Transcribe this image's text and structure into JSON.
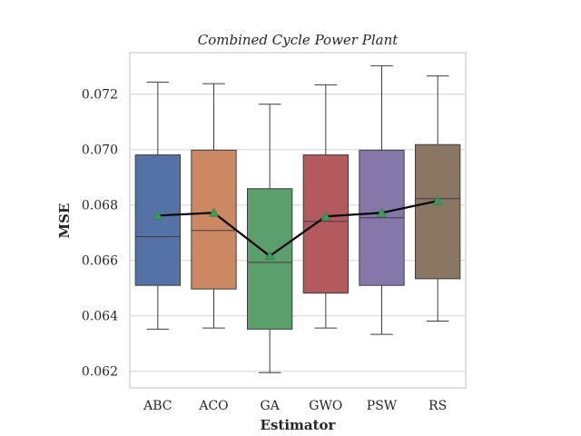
{
  "chart_data": {
    "type": "box",
    "title": "Combined Cycle Power Plant",
    "xlabel": "Estimator",
    "ylabel": "MSE",
    "ylim": [
      0.0614,
      0.0735
    ],
    "yticks": [
      0.062,
      0.064,
      0.066,
      0.068,
      0.07,
      0.072
    ],
    "ytick_labels": [
      "0.062",
      "0.064",
      "0.066",
      "0.068",
      "0.070",
      "0.072"
    ],
    "grid": "horizontal",
    "categories": [
      "ABC",
      "ACO",
      "GA",
      "GWO",
      "PSW",
      "RS"
    ],
    "colors": [
      "#5572a6",
      "#cc8863",
      "#5b9f6c",
      "#b45a5f",
      "#8677ab",
      "#8b7663"
    ],
    "boxes": [
      {
        "category": "ABC",
        "whisker_low": 0.06352,
        "q1": 0.0651,
        "median": 0.06686,
        "q3": 0.06981,
        "whisker_high": 0.07244
      },
      {
        "category": "ACO",
        "whisker_low": 0.06356,
        "q1": 0.06497,
        "median": 0.06708,
        "q3": 0.06998,
        "whisker_high": 0.07238
      },
      {
        "category": "GA",
        "whisker_low": 0.06195,
        "q1": 0.06352,
        "median": 0.06593,
        "q3": 0.06859,
        "whisker_high": 0.07164
      },
      {
        "category": "GWO",
        "whisker_low": 0.06356,
        "q1": 0.06482,
        "median": 0.06741,
        "q3": 0.06981,
        "whisker_high": 0.07234
      },
      {
        "category": "PSW",
        "whisker_low": 0.06333,
        "q1": 0.0651,
        "median": 0.06754,
        "q3": 0.06998,
        "whisker_high": 0.07303
      },
      {
        "category": "RS",
        "whisker_low": 0.06381,
        "q1": 0.06534,
        "median": 0.06823,
        "q3": 0.07018,
        "whisker_high": 0.07266
      }
    ],
    "means": [
      0.06762,
      0.06772,
      0.06616,
      0.06759,
      0.06772,
      0.06815
    ],
    "mean_line_color": "#000000",
    "mean_marker_color": "#3a9a5a"
  }
}
